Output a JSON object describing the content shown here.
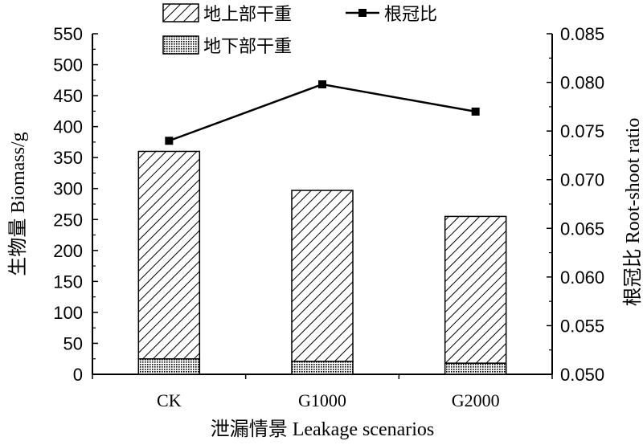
{
  "chart_data": {
    "type": "bar",
    "categories": [
      "CK",
      "G1000",
      "G2000"
    ],
    "series": [
      {
        "name": "地上部干重",
        "values": [
          335,
          276,
          237
        ],
        "pattern": "hatch"
      },
      {
        "name": "地下部干重",
        "values": [
          25,
          21,
          18
        ],
        "pattern": "dots"
      },
      {
        "name": "根冠比",
        "values": [
          0.074,
          0.0798,
          0.077
        ],
        "axis": "right",
        "kind": "line"
      }
    ],
    "stacked": true,
    "xlabel": "泄漏情景 Leakage scenarios",
    "ylabel": "生物量 Biomass/g",
    "ylabel_right": "根冠比 Root-shoot ratio",
    "ylim": [
      0,
      550
    ],
    "ylim_right": [
      0.05,
      0.085
    ],
    "yticks": [
      "0",
      "50",
      "100",
      "150",
      "200",
      "250",
      "300",
      "350",
      "400",
      "450",
      "500",
      "550"
    ],
    "yticks_right": [
      "0.050",
      "0.055",
      "0.060",
      "0.065",
      "0.070",
      "0.075",
      "0.080",
      "0.085"
    ],
    "legend_position": "top",
    "grid": false
  }
}
